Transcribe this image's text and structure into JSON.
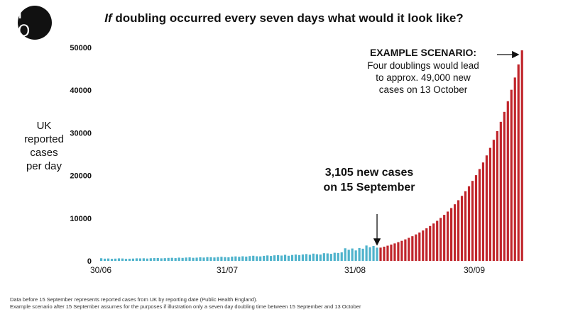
{
  "logo": {
    "text": "I O"
  },
  "title": {
    "italic": "If",
    "rest": " doubling occurred every seven days what would it look like?"
  },
  "chart_data": {
    "type": "bar",
    "title": "If doubling occurred every seven days what would it look like?",
    "ylabel": "UK\nreported\ncases\nper day",
    "ylim": [
      0,
      50000
    ],
    "yticks": [
      0,
      10000,
      20000,
      30000,
      40000,
      50000
    ],
    "xticks": [
      "30/06",
      "31/07",
      "31/08",
      "30/09"
    ],
    "grid": false,
    "colors": {
      "reported": "#4fb3cc",
      "scenario": "#c0252b",
      "text": "#111111"
    },
    "series": [
      {
        "name": "Reported cases (Public Health England)",
        "color": "#4fb3cc",
        "values": [
          620,
          520,
          560,
          480,
          530,
          590,
          560,
          470,
          510,
          540,
          600,
          580,
          610,
          550,
          620,
          660,
          680,
          600,
          640,
          700,
          720,
          650,
          760,
          700,
          780,
          820,
          720,
          760,
          840,
          780,
          880,
          860,
          800,
          900,
          960,
          880,
          840,
          1000,
          1050,
          960,
          1080,
          1000,
          1120,
          1200,
          1080,
          1050,
          1180,
          1270,
          1150,
          1300,
          1350,
          1250,
          1420,
          1200,
          1380,
          1480,
          1360,
          1500,
          1600,
          1440,
          1700,
          1560,
          1480,
          1800,
          1750,
          1650,
          1900,
          1850,
          2000,
          2950,
          2600,
          2900,
          2450,
          3000,
          2850,
          3600,
          3200,
          3500,
          3100
        ]
      },
      {
        "name": "Example scenario (seven day doubling)",
        "color": "#c0252b",
        "values": [
          3105,
          3327,
          3565,
          3821,
          4094,
          4388,
          4702,
          5038,
          5399,
          5786,
          6200,
          6643,
          7119,
          7629,
          8175,
          8760,
          9387,
          10059,
          10779,
          11551,
          12378,
          13264,
          14213,
          15231,
          16321,
          17490,
          18742,
          20083,
          21521,
          23061,
          24712,
          26481,
          28376,
          30407,
          32584,
          34916,
          37415,
          40094,
          42963,
          46039,
          49334
        ]
      }
    ],
    "annotations": [
      {
        "text": "3,105 new cases\non 15 September",
        "date": "15/09",
        "value": 3105
      },
      {
        "heading": "EXAMPLE SCENARIO:",
        "text": "Four doublings would lead\nto approx. 49,000 new\ncases on 13 October",
        "date": "13/10",
        "value": 49334
      }
    ]
  },
  "footnote": {
    "line1": "Data before 15 September represents reported cases from UK by reporting date (Public Health England).",
    "line2": "Example scenario after 15 September assumes for the purposes if illustration only a seven day doubling time between 15 September and 13 October"
  }
}
